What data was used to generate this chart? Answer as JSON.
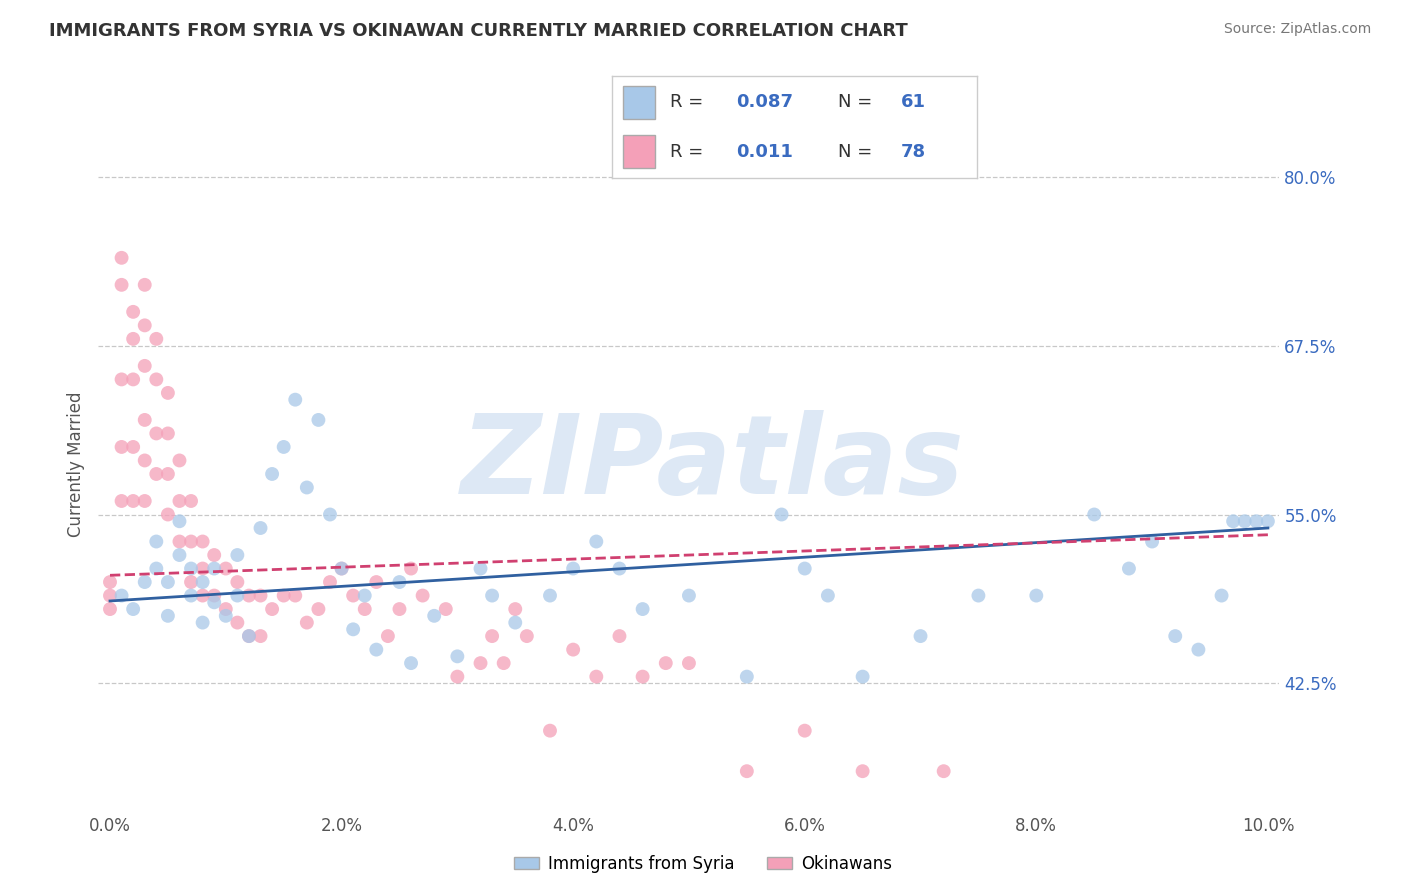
{
  "title": "IMMIGRANTS FROM SYRIA VS OKINAWAN CURRENTLY MARRIED CORRELATION CHART",
  "source_text": "Source: ZipAtlas.com",
  "ylabel": "Currently Married",
  "xlim": [
    -0.001,
    0.101
  ],
  "ylim": [
    0.33,
    0.845
  ],
  "xticks": [
    0.0,
    0.02,
    0.04,
    0.06,
    0.08,
    0.1
  ],
  "xtick_labels": [
    "0.0%",
    "2.0%",
    "4.0%",
    "6.0%",
    "8.0%",
    "10.0%"
  ],
  "yticks": [
    0.425,
    0.55,
    0.675,
    0.8
  ],
  "ytick_labels": [
    "42.5%",
    "55.0%",
    "67.5%",
    "80.0%"
  ],
  "blue_color": "#a8c8e8",
  "pink_color": "#f4a0b8",
  "blue_line_color": "#3060a0",
  "pink_line_color": "#d04070",
  "watermark": "ZIPatlas",
  "watermark_color": "#dde8f5",
  "background_color": "#ffffff",
  "blue_scatter_x": [
    0.001,
    0.002,
    0.003,
    0.004,
    0.004,
    0.005,
    0.005,
    0.006,
    0.006,
    0.007,
    0.007,
    0.008,
    0.008,
    0.009,
    0.009,
    0.01,
    0.011,
    0.011,
    0.012,
    0.013,
    0.014,
    0.015,
    0.016,
    0.017,
    0.018,
    0.019,
    0.02,
    0.021,
    0.022,
    0.023,
    0.025,
    0.026,
    0.028,
    0.03,
    0.032,
    0.033,
    0.035,
    0.038,
    0.04,
    0.042,
    0.044,
    0.046,
    0.05,
    0.055,
    0.058,
    0.06,
    0.062,
    0.065,
    0.07,
    0.075,
    0.08,
    0.085,
    0.088,
    0.09,
    0.092,
    0.094,
    0.096,
    0.097,
    0.098,
    0.099,
    0.1
  ],
  "blue_scatter_y": [
    0.49,
    0.48,
    0.5,
    0.51,
    0.53,
    0.475,
    0.5,
    0.52,
    0.545,
    0.49,
    0.51,
    0.47,
    0.5,
    0.485,
    0.51,
    0.475,
    0.49,
    0.52,
    0.46,
    0.54,
    0.58,
    0.6,
    0.635,
    0.57,
    0.62,
    0.55,
    0.51,
    0.465,
    0.49,
    0.45,
    0.5,
    0.44,
    0.475,
    0.445,
    0.51,
    0.49,
    0.47,
    0.49,
    0.51,
    0.53,
    0.51,
    0.48,
    0.49,
    0.43,
    0.55,
    0.51,
    0.49,
    0.43,
    0.46,
    0.49,
    0.49,
    0.55,
    0.51,
    0.53,
    0.46,
    0.45,
    0.49,
    0.545,
    0.545,
    0.545,
    0.545
  ],
  "pink_scatter_x": [
    0.0,
    0.0,
    0.0,
    0.001,
    0.001,
    0.001,
    0.001,
    0.001,
    0.002,
    0.002,
    0.002,
    0.002,
    0.002,
    0.003,
    0.003,
    0.003,
    0.003,
    0.003,
    0.003,
    0.004,
    0.004,
    0.004,
    0.004,
    0.005,
    0.005,
    0.005,
    0.005,
    0.006,
    0.006,
    0.006,
    0.007,
    0.007,
    0.007,
    0.008,
    0.008,
    0.008,
    0.009,
    0.009,
    0.01,
    0.01,
    0.011,
    0.011,
    0.012,
    0.012,
    0.013,
    0.013,
    0.014,
    0.015,
    0.016,
    0.017,
    0.018,
    0.019,
    0.02,
    0.021,
    0.022,
    0.023,
    0.024,
    0.025,
    0.026,
    0.027,
    0.029,
    0.03,
    0.032,
    0.033,
    0.034,
    0.035,
    0.036,
    0.038,
    0.04,
    0.042,
    0.044,
    0.046,
    0.048,
    0.05,
    0.055,
    0.06,
    0.065,
    0.072
  ],
  "pink_scatter_y": [
    0.48,
    0.49,
    0.5,
    0.74,
    0.72,
    0.65,
    0.6,
    0.56,
    0.7,
    0.68,
    0.65,
    0.6,
    0.56,
    0.72,
    0.69,
    0.66,
    0.62,
    0.59,
    0.56,
    0.68,
    0.65,
    0.61,
    0.58,
    0.64,
    0.61,
    0.58,
    0.55,
    0.59,
    0.56,
    0.53,
    0.56,
    0.53,
    0.5,
    0.53,
    0.51,
    0.49,
    0.52,
    0.49,
    0.51,
    0.48,
    0.5,
    0.47,
    0.49,
    0.46,
    0.49,
    0.46,
    0.48,
    0.49,
    0.49,
    0.47,
    0.48,
    0.5,
    0.51,
    0.49,
    0.48,
    0.5,
    0.46,
    0.48,
    0.51,
    0.49,
    0.48,
    0.43,
    0.44,
    0.46,
    0.44,
    0.48,
    0.46,
    0.39,
    0.45,
    0.43,
    0.46,
    0.43,
    0.44,
    0.44,
    0.36,
    0.39,
    0.36,
    0.36
  ]
}
